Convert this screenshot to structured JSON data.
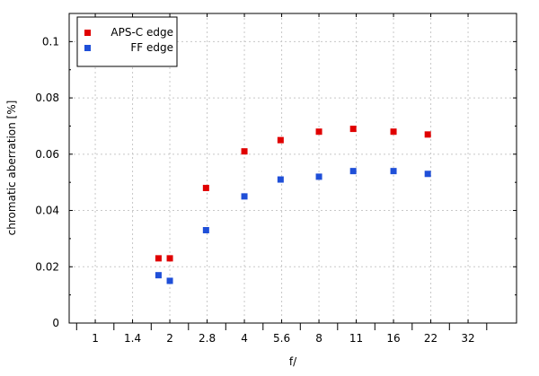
{
  "chart_data": {
    "type": "scatter",
    "title": "",
    "xlabel": "f/",
    "ylabel": "chromatic aberration [%]",
    "x_ticks": [
      "1",
      "1.4",
      "2",
      "2.8",
      "4",
      "5.6",
      "8",
      "11",
      "16",
      "22",
      "32"
    ],
    "xlim_stops": [
      -0.7,
      11.3
    ],
    "ylim": [
      0,
      0.11
    ],
    "y_ticks": [
      "0",
      "0.02",
      "0.04",
      "0.06",
      "0.08",
      "0.1"
    ],
    "y_tick_values": [
      0,
      0.02,
      0.04,
      0.06,
      0.08,
      0.1
    ],
    "grid": true,
    "legend_position": "top-left",
    "series": [
      {
        "name": "APS-C edge",
        "color": "#e00000",
        "points": [
          {
            "x": 1.8,
            "y": 0.023
          },
          {
            "x": 2,
            "y": 0.023
          },
          {
            "x": 2.8,
            "y": 0.048
          },
          {
            "x": 4,
            "y": 0.061
          },
          {
            "x": 5.6,
            "y": 0.065
          },
          {
            "x": 8,
            "y": 0.068
          },
          {
            "x": 11,
            "y": 0.069
          },
          {
            "x": 16,
            "y": 0.068
          },
          {
            "x": 22,
            "y": 0.067
          }
        ]
      },
      {
        "name": "FF edge",
        "color": "#1f4fd8",
        "points": [
          {
            "x": 1.8,
            "y": 0.017
          },
          {
            "x": 2,
            "y": 0.015
          },
          {
            "x": 2.8,
            "y": 0.033
          },
          {
            "x": 4,
            "y": 0.045
          },
          {
            "x": 5.6,
            "y": 0.051
          },
          {
            "x": 8,
            "y": 0.052
          },
          {
            "x": 11,
            "y": 0.054
          },
          {
            "x": 16,
            "y": 0.054
          },
          {
            "x": 22,
            "y": 0.053
          }
        ]
      }
    ]
  }
}
